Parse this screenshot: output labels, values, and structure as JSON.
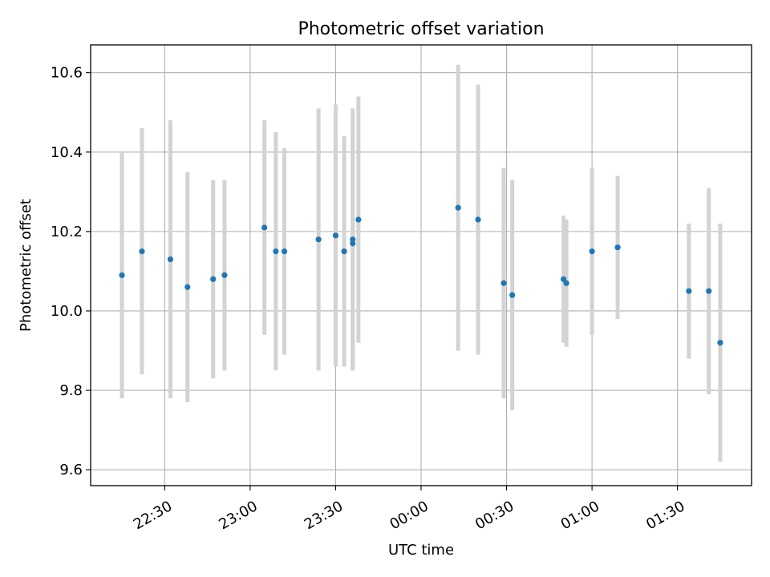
{
  "chart_data": {
    "type": "scatter",
    "title": "Photometric offset variation",
    "xlabel": "UTC time",
    "ylabel": "Photometric offset",
    "x_ticks": [
      "22:30",
      "23:00",
      "23:30",
      "00:00",
      "00:30",
      "01:00",
      "01:30"
    ],
    "y_ticks": [
      "9.6",
      "9.8",
      "10.0",
      "10.2",
      "10.4",
      "10.6"
    ],
    "xlim": [
      "22:04",
      "01:56"
    ],
    "ylim": [
      9.56,
      10.67
    ],
    "grid": true,
    "legend": "none",
    "colors": {
      "point": "#1f77b4",
      "errorbar": "#d3d3d3",
      "grid": "#b0b0b0"
    },
    "series": [
      {
        "x": [
          "22:15",
          "22:22",
          "22:32",
          "22:38",
          "22:47",
          "22:51",
          "23:05",
          "23:09",
          "23:12",
          "23:24",
          "23:30",
          "23:33",
          "23:36",
          "23:36",
          "23:38",
          "00:13",
          "00:20",
          "00:29",
          "00:32",
          "00:50",
          "00:51",
          "01:00",
          "01:09",
          "01:34",
          "01:41",
          "01:45"
        ],
        "y": [
          10.09,
          10.15,
          10.13,
          10.06,
          10.08,
          10.09,
          10.21,
          10.15,
          10.15,
          10.18,
          10.19,
          10.15,
          10.18,
          10.17,
          10.23,
          10.26,
          10.23,
          10.07,
          10.04,
          10.08,
          10.07,
          10.15,
          10.16,
          10.05,
          10.05,
          9.92
        ],
        "yerr": [
          0.31,
          0.31,
          0.35,
          0.29,
          0.25,
          0.24,
          0.27,
          0.3,
          0.26,
          0.33,
          0.33,
          0.29,
          0.33,
          0.32,
          0.31,
          0.36,
          0.34,
          0.29,
          0.29,
          0.16,
          0.16,
          0.21,
          0.18,
          0.17,
          0.26,
          0.3
        ]
      }
    ]
  }
}
